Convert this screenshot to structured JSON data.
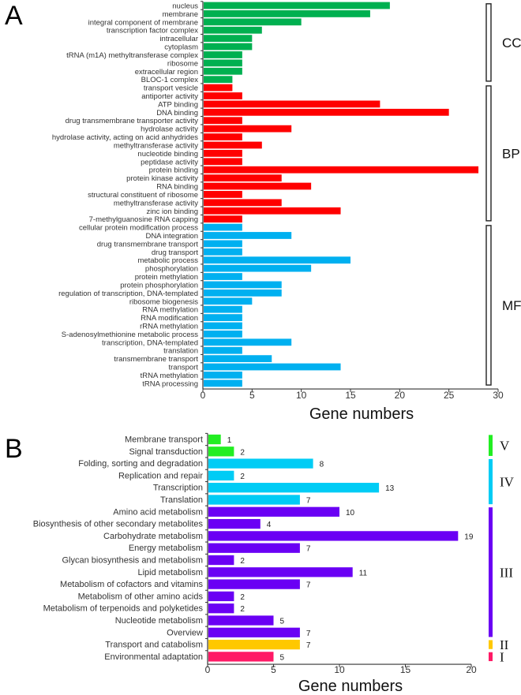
{
  "chart_data": [
    {
      "type": "bar",
      "orientation": "horizontal",
      "panel_label": "A",
      "xlabel": "Gene numbers",
      "xlim": [
        0,
        30
      ],
      "xticks": [
        0,
        5,
        10,
        15,
        20,
        25,
        30
      ],
      "groups": [
        {
          "name": "CC",
          "color": "#00b050",
          "categories": [
            "nucleus",
            "membrane",
            "integral component of membrane",
            "transcription factor complex",
            "intracellular",
            "cytoplasm",
            "tRNA (m1A) methyltransferase complex",
            "ribosome",
            "extracellular region",
            "BLOC-1 complex"
          ],
          "values": [
            19,
            17,
            10,
            6,
            5,
            5,
            4,
            4,
            4,
            3
          ]
        },
        {
          "name": "BP",
          "color": "#ff0000",
          "categories": [
            "transport vesicle",
            "antiporter activity",
            "ATP binding",
            "DNA binding",
            "drug transmembrane transporter activity",
            "hydrolase activity",
            "hydrolase activity, acting on acid anhydrides",
            "methyltransferase activity",
            "nucleotide binding",
            "peptidase activity",
            "protein binding",
            "protein kinase activity",
            "RNA binding",
            "structural constituent of ribosome",
            "methyltransferase activity",
            "zinc ion binding",
            "7-methylguanosine RNA capping"
          ],
          "values": [
            3,
            4,
            18,
            25,
            4,
            9,
            4,
            6,
            4,
            4,
            28,
            8,
            11,
            4,
            8,
            14,
            4
          ]
        },
        {
          "name": "MF",
          "color": "#00b0f0",
          "categories": [
            "cellular protein modification process",
            "DNA integration",
            "drug transmembrane transport",
            "drug transport",
            "metabolic process",
            "phosphorylation",
            "protein methylation",
            "protein phosphorylation",
            "regulation of transcription, DNA-templated",
            "ribosome biogenesis",
            "RNA methylation",
            "RNA modification",
            "rRNA methylation",
            "S-adenosylmethionine metabolic process",
            "transcription, DNA-templated",
            "translation",
            "transmembrane transport",
            "transport",
            "tRNA methylation",
            "tRNA processing"
          ],
          "values": [
            4,
            9,
            4,
            4,
            15,
            11,
            4,
            8,
            8,
            5,
            4,
            4,
            4,
            4,
            9,
            4,
            7,
            14,
            4,
            4
          ]
        }
      ]
    },
    {
      "type": "bar",
      "orientation": "horizontal",
      "panel_label": "B",
      "xlabel": "Gene numbers",
      "xlim": [
        0,
        20
      ],
      "xticks": [
        0,
        5,
        10,
        15,
        20
      ],
      "data_labels": true,
      "groups": [
        {
          "name": "V",
          "color": "#22ee22",
          "categories": [
            "Membrane transport",
            "Signal transduction"
          ],
          "values": [
            1,
            2
          ]
        },
        {
          "name": "IV",
          "color": "#00ccf5",
          "categories": [
            "Folding, sorting and degradation",
            "Replication and repair",
            "Transcription",
            "Translation"
          ],
          "values": [
            8,
            2,
            13,
            7
          ]
        },
        {
          "name": "III",
          "color": "#6a00f4",
          "categories": [
            "Amino acid metabolism",
            "Biosynthesis of other secondary metabolites",
            "Carbohydrate metabolism",
            "Energy metabolism",
            "Glycan biosynthesis and metabolism",
            "Lipid metabolism",
            "Metabolism of cofactors and vitamins",
            "Metabolism of other amino acids",
            "Metabolism of terpenoids and polyketides",
            "Nucleotide metabolism",
            "Overview"
          ],
          "values": [
            10,
            4,
            19,
            7,
            2,
            11,
            7,
            2,
            2,
            5,
            7
          ]
        },
        {
          "name": "II",
          "color": "#ffc800",
          "categories": [
            "Transport and catabolism"
          ],
          "values": [
            7
          ]
        },
        {
          "name": "I",
          "color": "#ff1a66",
          "categories": [
            "Environmental adaptation"
          ],
          "values": [
            5
          ]
        }
      ]
    }
  ]
}
